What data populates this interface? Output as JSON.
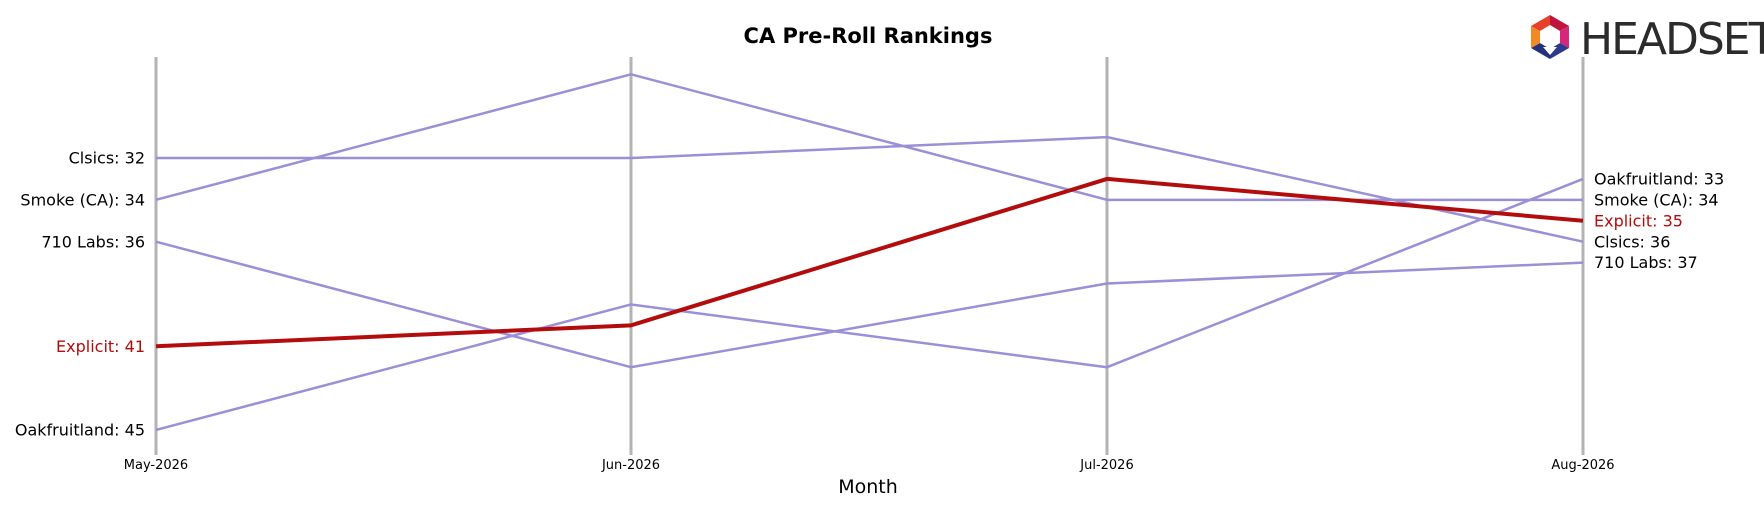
{
  "chart_data": {
    "type": "line",
    "title": "CA Pre-Roll Rankings",
    "xlabel": "Month",
    "ylabel": "",
    "categories": [
      "May-2026",
      "Jun-2026",
      "Jul-2026",
      "Aug-2026"
    ],
    "y_inverted": true,
    "ylim": [
      47,
      28
    ],
    "grid": false,
    "series": [
      {
        "name": "Clsics",
        "values": [
          32,
          32,
          31,
          36
        ],
        "color": "#9b8fd8",
        "highlight": false,
        "start_label": "Clsics: 32",
        "end_label": "Clsics: 36"
      },
      {
        "name": "Smoke (CA)",
        "values": [
          34,
          28,
          34,
          34
        ],
        "color": "#9b8fd8",
        "highlight": false,
        "start_label": "Smoke (CA): 34",
        "end_label": "Smoke (CA): 34"
      },
      {
        "name": "710 Labs",
        "values": [
          36,
          42,
          38,
          37
        ],
        "color": "#9b8fd8",
        "highlight": false,
        "start_label": "710 Labs: 36",
        "end_label": "710 Labs: 37"
      },
      {
        "name": "Oakfruitland",
        "values": [
          45,
          39,
          42,
          33
        ],
        "color": "#9b8fd8",
        "highlight": false,
        "start_label": "Oakfruitland: 45",
        "end_label": "Oakfruitland: 33"
      },
      {
        "name": "Explicit",
        "values": [
          41,
          40,
          33,
          35
        ],
        "color": "#b30c0c",
        "highlight": true,
        "start_label": "Explicit: 41",
        "end_label": "Explicit: 35"
      }
    ]
  },
  "logo": {
    "text": "HEADSET",
    "icon": "headset-hexagon-icon"
  }
}
